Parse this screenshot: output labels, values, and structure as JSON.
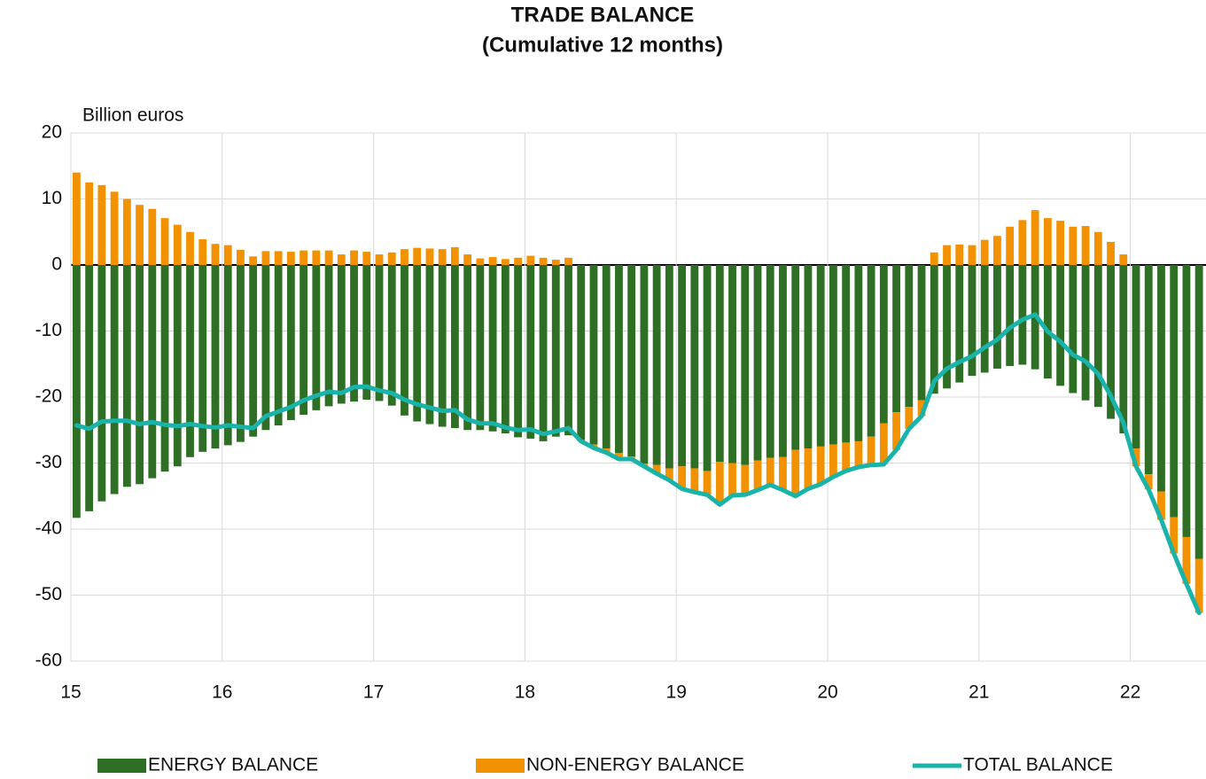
{
  "chart_data": {
    "type": "bar_line",
    "title": "TRADE BALANCE",
    "subtitle": "(Cumulative 12 months)",
    "y_axis_label": "Billion euros",
    "categories": [
      "15",
      null,
      null,
      null,
      null,
      null,
      null,
      null,
      null,
      null,
      null,
      null,
      "16",
      null,
      null,
      null,
      null,
      null,
      null,
      null,
      null,
      null,
      null,
      null,
      "17",
      null,
      null,
      null,
      null,
      null,
      null,
      null,
      null,
      null,
      null,
      null,
      "18",
      null,
      null,
      null,
      null,
      null,
      null,
      null,
      null,
      null,
      null,
      null,
      "19",
      null,
      null,
      null,
      null,
      null,
      null,
      null,
      null,
      null,
      null,
      null,
      "20",
      null,
      null,
      null,
      null,
      null,
      null,
      null,
      null,
      null,
      null,
      null,
      "21",
      null,
      null,
      null,
      null,
      null,
      null,
      null,
      null,
      null,
      null,
      null,
      "22",
      null,
      null,
      null,
      null,
      null
    ],
    "series": [
      {
        "name": "ENERGY BALANCE",
        "type": "bar",
        "color": "#2e6e25",
        "values": [
          -38.3,
          -37.3,
          -35.8,
          -34.7,
          -33.6,
          -33.2,
          -32.3,
          -31.3,
          -30.5,
          -29.1,
          -28.3,
          -27.8,
          -27.3,
          -26.8,
          -26,
          -25,
          -24.3,
          -23.5,
          -22.7,
          -22,
          -21.4,
          -21,
          -20.7,
          -20.4,
          -20.6,
          -21.3,
          -22.8,
          -23.7,
          -24.1,
          -24.5,
          -24.7,
          -25,
          -25,
          -25.2,
          -25.5,
          -26.1,
          -26.3,
          -26.7,
          -26,
          -25.8,
          -26.5,
          -27.2,
          -27.8,
          -28.5,
          -29,
          -30.1,
          -30.3,
          -30.8,
          -30.5,
          -30.8,
          -31.2,
          -29.8,
          -30,
          -30.3,
          -29.6,
          -29.2,
          -29.1,
          -28,
          -27.8,
          -27.5,
          -27.2,
          -26.9,
          -26.7,
          -26,
          -24,
          -22.3,
          -21.5,
          -20.5,
          -19.5,
          -18.7,
          -17.8,
          -16.8,
          -16.3,
          -15.7,
          -15.3,
          -15.1,
          -15.8,
          -17.2,
          -18.3,
          -19.4,
          -20.5,
          -21.5,
          -23.3,
          -25.5,
          -27.8,
          -31.7,
          -34.3,
          -38.2,
          -41.2,
          -44.5
        ]
      },
      {
        "name": "NON-ENERGY BALANCE",
        "type": "bar",
        "color": "#f39200",
        "values": [
          14,
          12.5,
          12.1,
          11.1,
          10,
          9.1,
          8.5,
          7.1,
          6.1,
          5,
          3.9,
          3.2,
          3,
          2.3,
          1.3,
          2.1,
          2.1,
          2,
          2.2,
          2.2,
          2.2,
          1.6,
          2.2,
          2,
          1.6,
          1.9,
          2.4,
          2.6,
          2.5,
          2.4,
          2.7,
          1.6,
          1,
          1.2,
          0.9,
          1.1,
          1.4,
          1.1,
          0.8,
          1.1,
          -0.2,
          -0.5,
          -0.6,
          -0.9,
          -0.4,
          -0.4,
          -1.3,
          -1.8,
          -3.4,
          -3.6,
          -3.6,
          -6.5,
          -4.9,
          -4.5,
          -4.5,
          -4.1,
          -5,
          -7,
          -6.1,
          -5.7,
          -4.9,
          -4.3,
          -3.9,
          -4.3,
          -6.2,
          -5.7,
          -3.3,
          -2.4,
          1.9,
          3,
          3.1,
          3,
          3.8,
          4.4,
          5.8,
          6.8,
          8.3,
          7.1,
          6.7,
          5.8,
          5.9,
          5,
          3.5,
          1.6,
          -2.7,
          -2.3,
          -4.3,
          -5.5,
          -7.1,
          -8.2
        ]
      },
      {
        "name": "TOTAL BALANCE",
        "type": "line",
        "color": "#1ab3aa",
        "values": [
          -24.3,
          -24.8,
          -23.7,
          -23.6,
          -23.6,
          -24.1,
          -23.8,
          -24.2,
          -24.4,
          -24.1,
          -24.4,
          -24.6,
          -24.3,
          -24.5,
          -24.7,
          -22.9,
          -22.2,
          -21.5,
          -20.5,
          -19.8,
          -19.2,
          -19.4,
          -18.5,
          -18.4,
          -19,
          -19.4,
          -20.4,
          -21.1,
          -21.6,
          -22.1,
          -22,
          -23.4,
          -24,
          -24,
          -24.6,
          -25,
          -24.9,
          -25.6,
          -25.2,
          -24.7,
          -26.7,
          -27.7,
          -28.4,
          -29.4,
          -29.4,
          -30.5,
          -31.6,
          -32.6,
          -33.9,
          -34.4,
          -34.8,
          -36.3,
          -34.9,
          -34.8,
          -34.1,
          -33.3,
          -34.1,
          -35,
          -33.9,
          -33.2,
          -32.1,
          -31.2,
          -30.6,
          -30.3,
          -30.2,
          -28,
          -24.8,
          -22.9,
          -17.6,
          -15.7,
          -14.7,
          -13.8,
          -12.5,
          -11.3,
          -9.5,
          -8.3,
          -7.5,
          -10.1,
          -11.6,
          -13.6,
          -14.6,
          -16.5,
          -19.8,
          -23.9,
          -30.5,
          -34,
          -38.6,
          -43.7,
          -48.3,
          -52.7
        ]
      }
    ],
    "ylim": [
      -60,
      20
    ],
    "yticks": [
      -60,
      -50,
      -40,
      -30,
      -20,
      -10,
      0,
      10,
      20
    ],
    "grid": true
  }
}
